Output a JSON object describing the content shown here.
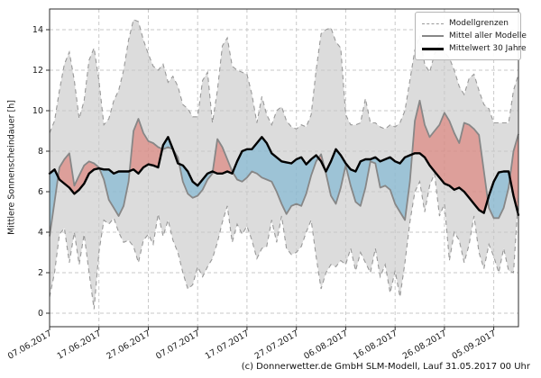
{
  "figure": {
    "copyright": "(c) Donnerwetter.de GmbH SLM-Modell, Lauf 31.05.2017 00 Uhr"
  },
  "legend": {
    "items": [
      "Modellgrenzen",
      "Mittel aller Modelle",
      "Mittelwert 30 Jahre"
    ]
  },
  "chart_data": {
    "type": "line",
    "title": "",
    "xlabel": "",
    "ylabel": "Mittlere Sonnenscheindauer [h]",
    "ylim": [
      -0.7,
      15.0
    ],
    "yticks": [
      0,
      2,
      4,
      6,
      8,
      10,
      12,
      14
    ],
    "grid": true,
    "legend_position": "upper right",
    "start_date": "07.06.2017",
    "x_tick_days": [
      0,
      10,
      20,
      30,
      40,
      50,
      60,
      70,
      80,
      90
    ],
    "x_tick_labels": [
      "07.06.2017",
      "17.06.2017",
      "27.06.2017",
      "07.07.2017",
      "17.07.2017",
      "27.07.2017",
      "06.08.2017",
      "16.08.2017",
      "26.08.2017",
      "05.09.2017"
    ],
    "colors": {
      "band_fill": "#dcdcdc",
      "band_edge": "#999999",
      "model_mean_line": "#878787",
      "climate_mean_line": "#000000",
      "above_normal_fill": "rgba(222,110,100,0.55)",
      "below_normal_fill": "rgba(105,175,210,0.55)",
      "grid_line": "#c9c9c9"
    },
    "series": [
      {
        "name": "Modellgrenzen (obere Grenze)",
        "role": "upper_bound",
        "style": "dashed-gray",
        "values": [
          8.9,
          9.5,
          11.0,
          12.3,
          12.9,
          11.5,
          9.6,
          10.5,
          12.5,
          13.1,
          11.5,
          9.3,
          9.6,
          10.5,
          11.0,
          12.0,
          13.5,
          14.5,
          14.4,
          13.5,
          12.8,
          12.2,
          12.0,
          12.3,
          11.4,
          11.7,
          11.2,
          10.3,
          10.1,
          9.7,
          9.7,
          11.5,
          11.9,
          9.4,
          11.0,
          13.2,
          13.6,
          12.2,
          12.0,
          11.9,
          11.8,
          10.8,
          9.4,
          10.7,
          9.8,
          9.3,
          10.0,
          10.2,
          9.5,
          9.2,
          9.1,
          9.3,
          9.2,
          9.8,
          12.0,
          13.8,
          14.0,
          14.1,
          13.4,
          13.1,
          9.8,
          9.3,
          9.3,
          9.4,
          10.6,
          9.4,
          9.4,
          9.2,
          9.1,
          9.3,
          9.2,
          9.4,
          10.0,
          11.5,
          13.0,
          13.7,
          12.3,
          11.9,
          12.8,
          13.3,
          12.9,
          12.6,
          12.0,
          11.2,
          10.8,
          11.6,
          11.8,
          11.0,
          10.3,
          10.1,
          9.4,
          9.4,
          9.4,
          9.4,
          11.0,
          11.8
        ]
      },
      {
        "name": "Modellgrenzen (untere Grenze)",
        "role": "lower_bound",
        "style": "dashed-gray",
        "values": [
          0.8,
          2.0,
          3.9,
          4.2,
          2.5,
          4.0,
          2.4,
          3.9,
          2.0,
          0.2,
          3.0,
          4.6,
          4.4,
          4.7,
          4.0,
          3.5,
          3.6,
          3.3,
          2.5,
          3.6,
          3.9,
          3.4,
          4.9,
          3.8,
          4.6,
          3.6,
          3.0,
          2.0,
          1.2,
          1.4,
          2.3,
          1.8,
          2.3,
          2.7,
          3.5,
          4.5,
          5.3,
          3.5,
          4.4,
          3.9,
          4.3,
          3.6,
          2.7,
          3.2,
          3.3,
          4.6,
          3.5,
          4.8,
          3.2,
          2.9,
          3.0,
          3.3,
          4.0,
          4.6,
          2.8,
          1.2,
          2.0,
          2.4,
          2.3,
          2.6,
          2.4,
          3.2,
          2.1,
          3.0,
          2.5,
          2.0,
          3.2,
          1.8,
          2.4,
          1.0,
          2.1,
          0.8,
          2.5,
          4.5,
          6.0,
          6.5,
          5.0,
          6.3,
          6.9,
          4.8,
          5.4,
          2.6,
          4.0,
          3.6,
          2.5,
          3.4,
          4.8,
          3.0,
          2.2,
          3.4,
          2.8,
          2.0,
          3.2,
          2.1,
          2.0,
          5.8
        ]
      },
      {
        "name": "Mittel aller Modelle",
        "role": "model_mean",
        "style": "solid-gray",
        "values": [
          3.8,
          5.5,
          7.2,
          7.6,
          7.9,
          6.3,
          6.8,
          7.3,
          7.5,
          7.4,
          7.2,
          6.6,
          5.6,
          5.2,
          4.8,
          5.3,
          6.5,
          9.0,
          9.6,
          8.9,
          8.5,
          8.4,
          8.2,
          8.1,
          8.2,
          8.1,
          7.7,
          6.5,
          5.9,
          5.7,
          5.8,
          6.1,
          6.6,
          6.9,
          8.6,
          8.2,
          7.6,
          7.0,
          6.6,
          6.5,
          6.7,
          7.0,
          6.9,
          6.7,
          6.6,
          6.5,
          6.0,
          5.4,
          4.9,
          5.3,
          5.4,
          5.3,
          5.9,
          6.8,
          7.5,
          7.85,
          6.9,
          5.8,
          5.4,
          6.2,
          7.3,
          6.3,
          5.5,
          5.3,
          6.2,
          7.5,
          7.4,
          6.2,
          6.3,
          6.1,
          5.4,
          5.0,
          4.6,
          6.5,
          9.5,
          10.5,
          9.3,
          8.7,
          9.0,
          9.3,
          9.9,
          9.5,
          8.9,
          8.4,
          9.4,
          9.3,
          9.1,
          8.8,
          7.0,
          5.2,
          4.7,
          4.7,
          5.2,
          6.2,
          8.0,
          8.85
        ]
      },
      {
        "name": "Mittelwert 30 Jahre",
        "role": "climate_mean",
        "style": "solid-black-thick",
        "values": [
          6.9,
          7.1,
          6.6,
          6.4,
          6.2,
          5.9,
          6.1,
          6.4,
          6.9,
          7.1,
          7.15,
          7.1,
          7.1,
          6.9,
          7.0,
          7.0,
          7.0,
          7.1,
          6.9,
          7.2,
          7.35,
          7.3,
          7.2,
          8.3,
          8.7,
          8.1,
          7.4,
          7.3,
          7.0,
          6.5,
          6.3,
          6.6,
          6.9,
          7.0,
          6.9,
          6.9,
          7.0,
          6.9,
          7.5,
          8.0,
          8.1,
          8.1,
          8.4,
          8.7,
          8.4,
          7.9,
          7.7,
          7.5,
          7.45,
          7.4,
          7.6,
          7.7,
          7.35,
          7.6,
          7.8,
          7.5,
          7.0,
          7.5,
          8.1,
          7.8,
          7.4,
          7.1,
          7.0,
          7.5,
          7.6,
          7.6,
          7.7,
          7.5,
          7.6,
          7.7,
          7.5,
          7.4,
          7.7,
          7.8,
          7.9,
          7.9,
          7.7,
          7.3,
          7.0,
          6.7,
          6.4,
          6.3,
          6.1,
          6.2,
          6.0,
          5.7,
          5.4,
          5.1,
          4.95,
          5.8,
          6.5,
          6.95,
          7.0,
          7.0,
          5.8,
          4.85
        ]
      }
    ]
  }
}
